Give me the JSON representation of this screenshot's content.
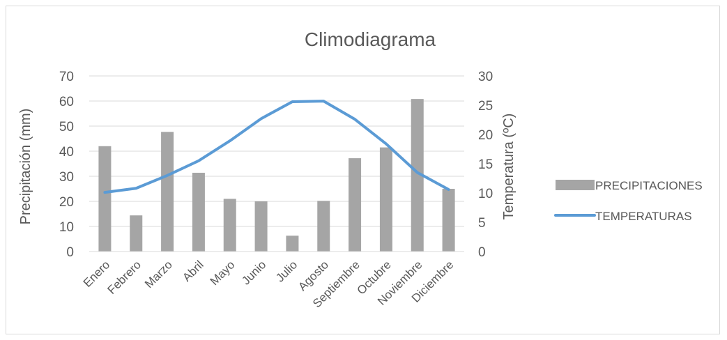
{
  "chart_data": {
    "type": "bar",
    "title": "Climodiagrama",
    "categories": [
      "Enero",
      "Febrero",
      "Marzo",
      "Abril",
      "Mayo",
      "Junio",
      "Julio",
      "Agosto",
      "Septiembre",
      "Octubre",
      "Noviembre",
      "Diciembre"
    ],
    "series": [
      {
        "name": "PRECIPITACIONES",
        "type": "bar",
        "axis": "left",
        "color": "#a5a5a5",
        "values": [
          42,
          14.4,
          47.7,
          31.4,
          21,
          20,
          6.3,
          20.2,
          37.2,
          41.5,
          60.8,
          25
        ]
      },
      {
        "name": "TEMPERATURAS",
        "type": "line",
        "axis": "right",
        "color": "#5b9bd5",
        "values": [
          10.1,
          10.8,
          13,
          15.5,
          18.9,
          22.7,
          25.6,
          25.7,
          22.6,
          18.4,
          13.5,
          10.6
        ]
      }
    ],
    "ylabel": "Precipitación (mm)",
    "ylim": [
      0,
      70
    ],
    "yticks": [
      0,
      10,
      20,
      30,
      40,
      50,
      60,
      70
    ],
    "y2label": "Temperatura (ºC)",
    "y2lim": [
      0,
      30
    ],
    "y2ticks": [
      0,
      5,
      10,
      15,
      20,
      25,
      30
    ],
    "grid": true,
    "legend_position": "right"
  }
}
